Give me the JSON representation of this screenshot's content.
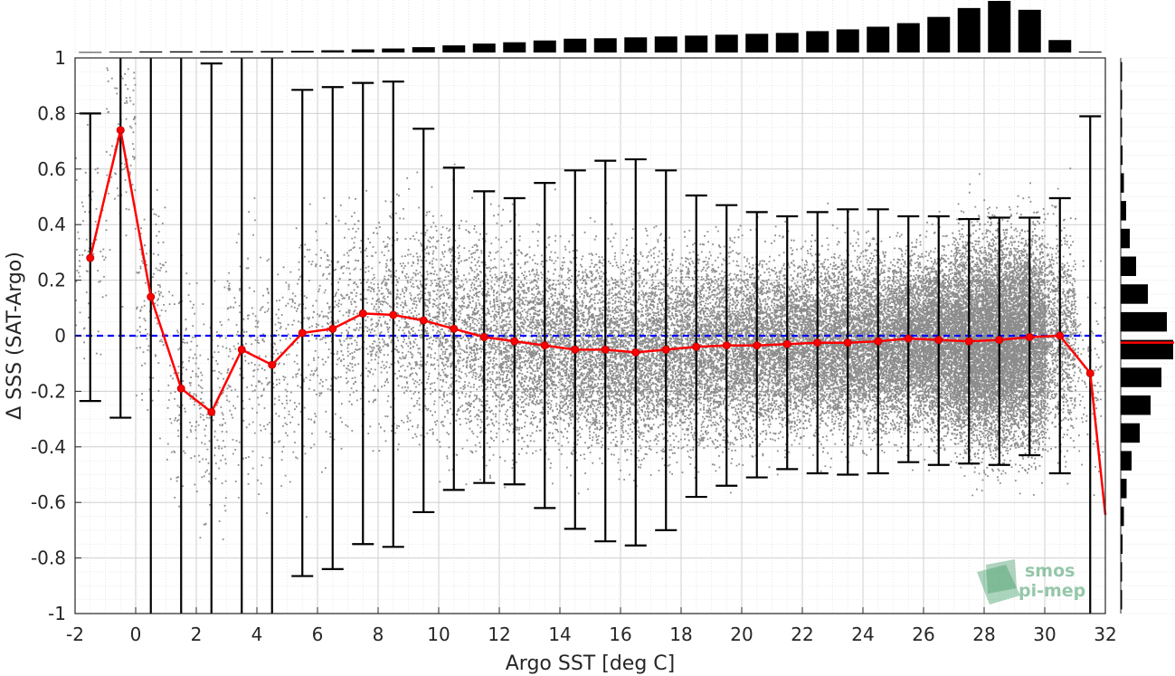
{
  "chart_data": {
    "type": "scatter",
    "xlabel": "Argo SST [deg C]",
    "ylabel": "Δ SSS (SAT-Argo)",
    "xlim": [
      -2,
      32
    ],
    "ylim": [
      -1,
      1
    ],
    "xticks": [
      "-2",
      "0",
      "2",
      "4",
      "6",
      "8",
      "10",
      "12",
      "14",
      "16",
      "18",
      "20",
      "22",
      "24",
      "26",
      "28",
      "30",
      "32"
    ],
    "yticks": [
      "-1",
      "-0.8",
      "-0.6",
      "-0.4",
      "-0.2",
      "0",
      "0.2",
      "0.4",
      "0.6",
      "0.8",
      "1"
    ],
    "grid": true,
    "reference_line": {
      "y": 0,
      "color": "#0000ff",
      "style": "dashed"
    },
    "mean_series": {
      "color": "#ff0000",
      "x": [
        -1.5,
        -0.5,
        0.5,
        1.5,
        2.5,
        3.5,
        4.5,
        5.5,
        6.5,
        7.5,
        8.5,
        9.5,
        10.5,
        11.5,
        12.5,
        13.5,
        14.5,
        15.5,
        16.5,
        17.5,
        18.5,
        19.5,
        20.5,
        21.5,
        22.5,
        23.5,
        24.5,
        25.5,
        26.5,
        27.5,
        28.5,
        29.5,
        30.5,
        31.5,
        32
      ],
      "y": [
        0.28,
        0.74,
        0.14,
        -0.19,
        -0.275,
        -0.05,
        -0.105,
        0.01,
        0.025,
        0.08,
        0.075,
        0.055,
        0.025,
        -0.005,
        -0.02,
        -0.035,
        -0.05,
        -0.05,
        -0.06,
        -0.05,
        -0.04,
        -0.035,
        -0.035,
        -0.03,
        -0.025,
        -0.025,
        -0.02,
        -0.01,
        -0.015,
        -0.02,
        -0.015,
        -0.005,
        0.0,
        -0.135,
        -0.645
      ]
    },
    "error_bars": {
      "color": "#000000",
      "x": [
        -1.5,
        -0.5,
        0.5,
        1.5,
        2.5,
        3.5,
        4.5,
        5.5,
        6.5,
        7.5,
        8.5,
        9.5,
        10.5,
        11.5,
        12.5,
        13.5,
        14.5,
        15.5,
        16.5,
        17.5,
        18.5,
        19.5,
        20.5,
        21.5,
        22.5,
        23.5,
        24.5,
        25.5,
        26.5,
        27.5,
        28.5,
        29.5,
        30.5,
        31.5
      ],
      "upper": [
        0.8,
        1.0,
        1.0,
        1.0,
        0.98,
        1.0,
        1.0,
        0.885,
        0.895,
        0.91,
        0.915,
        0.745,
        0.605,
        0.52,
        0.495,
        0.55,
        0.595,
        0.63,
        0.635,
        0.595,
        0.505,
        0.47,
        0.445,
        0.43,
        0.445,
        0.455,
        0.455,
        0.43,
        0.43,
        0.42,
        0.425,
        0.425,
        0.495,
        0.79
      ],
      "lower": [
        -0.235,
        -0.295,
        -1.0,
        -1.0,
        -1.0,
        -1.0,
        -1.0,
        -0.865,
        -0.84,
        -0.75,
        -0.76,
        -0.635,
        -0.555,
        -0.53,
        -0.535,
        -0.62,
        -0.695,
        -0.74,
        -0.755,
        -0.7,
        -0.58,
        -0.54,
        -0.51,
        -0.48,
        -0.495,
        -0.5,
        -0.495,
        -0.455,
        -0.465,
        -0.46,
        -0.465,
        -0.43,
        -0.495,
        -1.0
      ]
    },
    "scatter_color": "#7f7f7f",
    "top_histogram": {
      "x": [
        -1.5,
        -0.5,
        0.5,
        1.5,
        2.5,
        3.5,
        4.5,
        5.5,
        6.5,
        7.5,
        8.5,
        9.5,
        10.5,
        11.5,
        12.5,
        13.5,
        14.5,
        15.5,
        16.5,
        17.5,
        18.5,
        19.5,
        20.5,
        21.5,
        22.5,
        23.5,
        24.5,
        25.5,
        26.5,
        27.5,
        28.5,
        29.5,
        30.5,
        31.5
      ],
      "counts": [
        0.5,
        0.8,
        1.2,
        1.3,
        1.4,
        1.5,
        1.6,
        1.8,
        2.5,
        3.5,
        4.5,
        6,
        8,
        10,
        11.5,
        13.5,
        15.5,
        16,
        17,
        18,
        19,
        20,
        21,
        22,
        24,
        26,
        29,
        33,
        40,
        50,
        58,
        48,
        14,
        1
      ]
    },
    "right_histogram": {
      "y": [
        0.95,
        0.85,
        0.75,
        0.65,
        0.55,
        0.45,
        0.35,
        0.25,
        0.15,
        0.05,
        -0.05,
        -0.15,
        -0.25,
        -0.35,
        -0.45,
        -0.55,
        -0.65,
        -0.75,
        -0.85,
        -0.95
      ],
      "counts": [
        0.3,
        0.6,
        1,
        2,
        3.5,
        6,
        10,
        17,
        30,
        51,
        58,
        45,
        33,
        21,
        12,
        6.5,
        3.5,
        2,
        1,
        0.5
      ],
      "median_line": {
        "y": -0.025,
        "color": "#ff0000"
      }
    }
  },
  "logo": {
    "line1": "smos",
    "line2": "pi-mep"
  }
}
